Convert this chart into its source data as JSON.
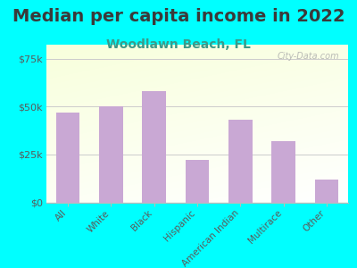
{
  "title": "Median per capita income in 2022",
  "subtitle": "Woodlawn Beach, FL",
  "categories": [
    "All",
    "White",
    "Black",
    "Hispanic",
    "American Indian",
    "Multirace",
    "Other"
  ],
  "values": [
    47000,
    50000,
    58000,
    22000,
    43000,
    32000,
    12000
  ],
  "bar_color": "#c9a8d4",
  "background_color": "#00ffff",
  "title_color": "#3a3a3a",
  "subtitle_color": "#3a9a8a",
  "tick_label_color": "#5a5a5a",
  "ylim": [
    0,
    82500
  ],
  "yticks": [
    0,
    25000,
    50000,
    75000
  ],
  "ytick_labels": [
    "$0",
    "$25k",
    "$50k",
    "$75k"
  ],
  "title_fontsize": 14,
  "subtitle_fontsize": 10,
  "watermark": "City-Data.com"
}
